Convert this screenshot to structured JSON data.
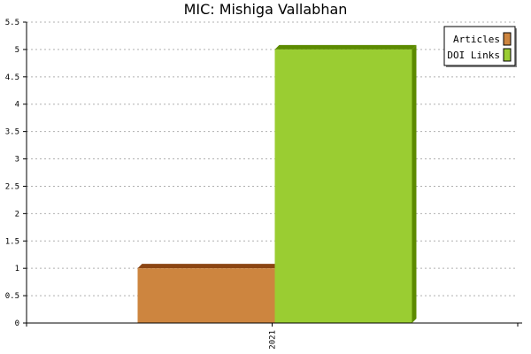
{
  "chart_data": {
    "type": "bar",
    "title": "MIC: Mishiga Vallabhan",
    "xlabel": "",
    "ylabel": "",
    "categories": [
      "2021"
    ],
    "series": [
      {
        "name": "Articles",
        "values": [
          1
        ],
        "color": "#cd853f",
        "side_color": "#8b4513"
      },
      {
        "name": "DOI Links",
        "values": [
          5
        ],
        "color": "#9acd32",
        "side_color": "#5c8a00"
      }
    ],
    "ylim": [
      0,
      5.5
    ],
    "yticks": [
      0,
      0.5,
      1,
      1.5,
      2,
      2.5,
      3,
      3.5,
      4,
      4.5,
      5,
      5.5
    ],
    "ytick_labels": [
      "0",
      "0.5",
      "1",
      "1.5",
      "2",
      "2.5",
      "3",
      "3.5",
      "4",
      "4.5",
      "5",
      "5.5"
    ],
    "grid": true,
    "legend_position": "top-right"
  }
}
